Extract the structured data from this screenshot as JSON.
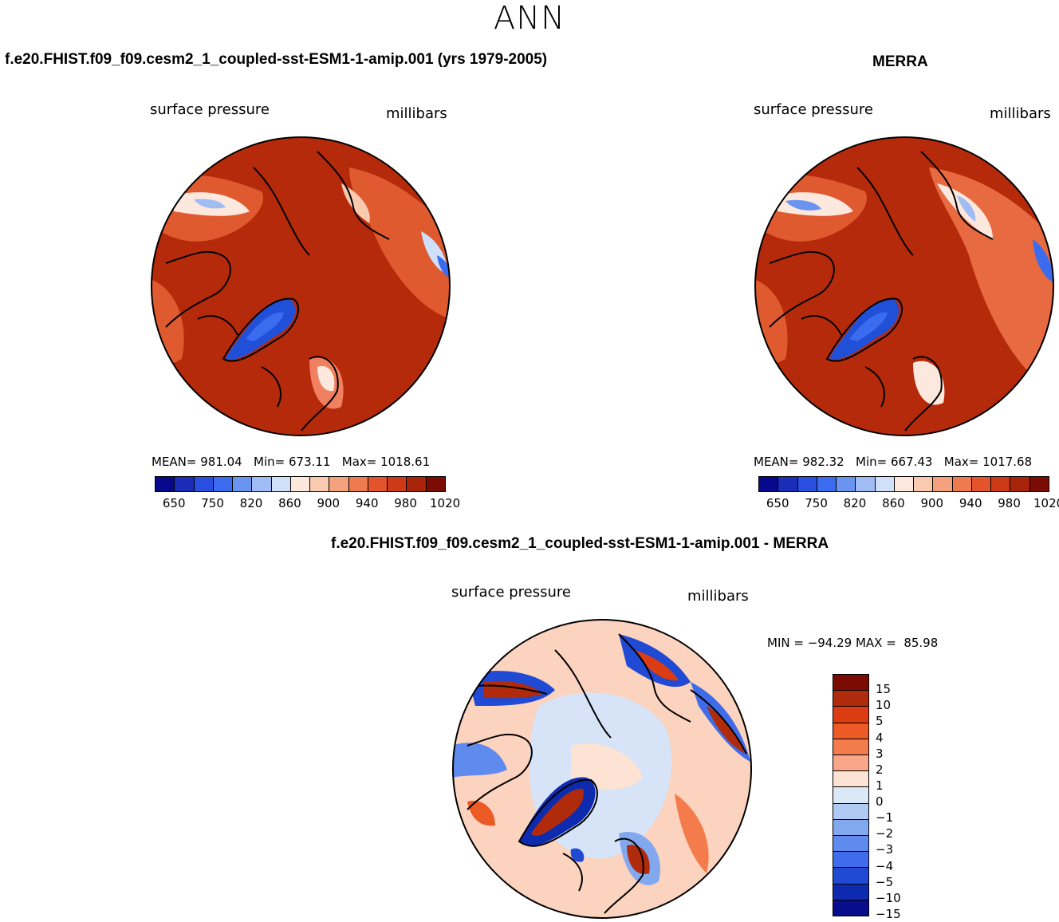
{
  "title": "ANN",
  "panels": {
    "model": {
      "case_title": "f.e20.FHIST.f09_f09.cesm2_1_coupled-sst-ESM1-1-amip.001 (yrs 1979-2005)",
      "left_label": "surface pressure",
      "right_label": "millibars",
      "stats": "MEAN= 981.04   Min= 673.11   Max= 1018.61"
    },
    "obs": {
      "case_title": "MERRA",
      "left_label": "surface pressure",
      "right_label": "millibars",
      "stats": "MEAN= 982.32   Min= 667.43   Max= 1017.68"
    },
    "diff": {
      "case_title": "f.e20.FHIST.f09_f09.cesm2_1_coupled-sst-ESM1-1-amip.001 - MERRA",
      "left_label": "surface pressure",
      "right_label": "millibars",
      "stats": "MIN = −94.29 MAX =  85.98"
    }
  },
  "colorbar_abs": {
    "colors": [
      "#08088c",
      "#1a2cb8",
      "#2a4fe0",
      "#3b6cf0",
      "#6b94f0",
      "#9fbcf5",
      "#cfe0f8",
      "#fde8dd",
      "#f9c9b0",
      "#f4a27e",
      "#ee7a50",
      "#e4542c",
      "#cc3a16",
      "#a8240a",
      "#7a0c04"
    ],
    "tick_labels": [
      "650",
      "750",
      "820",
      "860",
      "900",
      "940",
      "980",
      "1020"
    ]
  },
  "colorbar_diff": {
    "colors": [
      "#7a0c04",
      "#b02a0c",
      "#dc3c12",
      "#ec5a26",
      "#f47c4c",
      "#f9a788",
      "#fde3d3",
      "#dbe8f8",
      "#b0cbf3",
      "#82a8ef",
      "#5f8aee",
      "#3e6cea",
      "#2049d4",
      "#0e2bb0",
      "#080d8c"
    ],
    "tick_labels": [
      "15",
      "10",
      "5",
      "4",
      "3",
      "2",
      "1",
      "0",
      "−1",
      "−2",
      "−3",
      "−4",
      "−5",
      "−10",
      "−15"
    ]
  },
  "map_colors": {
    "ocean_high": "#b52a0a",
    "high_land": "#e05a30",
    "greenland": "#2150d8",
    "diff_pos": "#fbd3bf",
    "diff_neg": "#d7e3f7",
    "coast": "#000000"
  }
}
